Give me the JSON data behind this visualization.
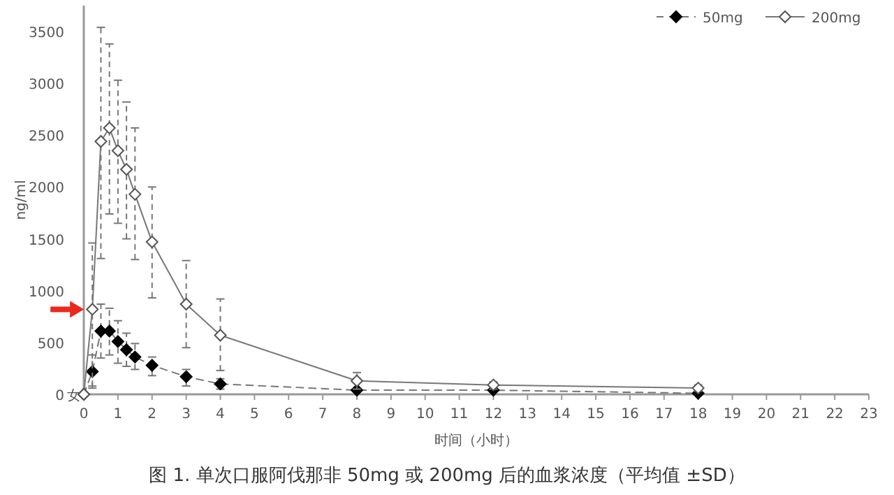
{
  "chart_data": {
    "type": "line",
    "title": "图 1. 单次口服阿伐那非 50mg 或 200mg 后的血浆浓度（平均值 ±SD）",
    "xlabel": "时间（小时）",
    "ylabel": "ng/ml",
    "annotations": [
      "女"
    ],
    "x": [
      0,
      0.25,
      0.5,
      0.75,
      1,
      1.25,
      1.5,
      2,
      3,
      4,
      8,
      12,
      18
    ],
    "series": [
      {
        "name": "50mg",
        "color": "#000000",
        "line_style": "dashed",
        "marker": "diamond",
        "values": [
          0,
          220,
          610,
          610,
          510,
          430,
          360,
          280,
          170,
          100,
          40,
          40,
          10
        ],
        "errors": [
          null,
          [
            80,
            380
          ],
          [
            350,
            870
          ],
          [
            380,
            830
          ],
          [
            300,
            710
          ],
          [
            270,
            590
          ],
          [
            240,
            490
          ],
          [
            180,
            360
          ],
          [
            80,
            240
          ],
          [
            50,
            150
          ],
          null,
          null,
          null
        ]
      },
      {
        "name": "200mg",
        "color": "#555555",
        "line_style": "solid",
        "marker": "diamond",
        "values": [
          0,
          820,
          2440,
          2570,
          2350,
          2170,
          1930,
          1470,
          870,
          570,
          130,
          90,
          60
        ],
        "errors": [
          null,
          [
            60,
            1460
          ],
          [
            1310,
            3540
          ],
          [
            1740,
            3380
          ],
          [
            1650,
            3030
          ],
          [
            1500,
            2820
          ],
          [
            1300,
            2570
          ],
          [
            930,
            2000
          ],
          [
            450,
            1290
          ],
          [
            230,
            920
          ],
          [
            50,
            210
          ],
          [
            50,
            120
          ],
          [
            30,
            90
          ]
        ]
      }
    ],
    "xlim": [
      0,
      23
    ],
    "xticks": [
      0,
      1,
      2,
      3,
      4,
      5,
      6,
      7,
      8,
      9,
      10,
      11,
      12,
      13,
      14,
      15,
      16,
      17,
      18,
      19,
      20,
      21,
      22,
      23
    ],
    "ylim": [
      0,
      3750
    ],
    "yticks": [
      0,
      500,
      1000,
      1500,
      2000,
      2500,
      3000,
      3500
    ],
    "grid": false,
    "legend": "top right"
  }
}
